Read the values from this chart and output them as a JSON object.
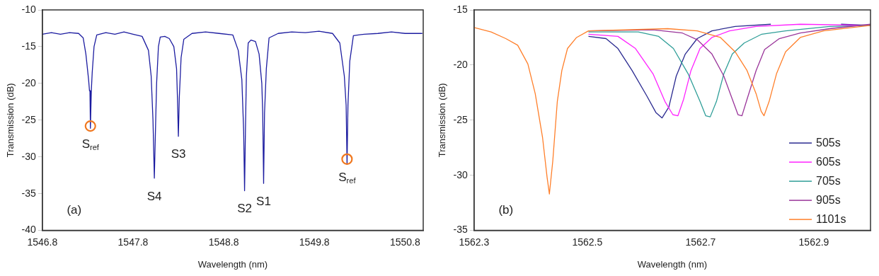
{
  "chart_data": [
    {
      "type": "line",
      "xlabel": "Wavelength (nm)",
      "ylabel": "Transmission (dB)",
      "xlim": [
        1546.8,
        1551.0
      ],
      "xticks": [
        1546.8,
        1547.8,
        1548.8,
        1549.8,
        1550.8
      ],
      "ylim": [
        -40,
        -10
      ],
      "yticks": [
        -40,
        -35,
        -30,
        -25,
        -20,
        -15,
        -10
      ],
      "grid": false,
      "legend": false,
      "series": [
        {
          "type": "line",
          "color": "#1c1ca0",
          "x": [
            1546.8,
            1546.9,
            1547.0,
            1547.1,
            1547.2,
            1547.25,
            1547.28,
            1547.31,
            1547.32,
            1547.325,
            1547.33,
            1547.34,
            1547.35,
            1547.37,
            1547.4,
            1547.5,
            1547.6,
            1547.7,
            1547.8,
            1547.9,
            1547.97,
            1548.0,
            1548.02,
            1548.035,
            1548.05,
            1548.06,
            1548.08,
            1548.1,
            1548.15,
            1548.2,
            1548.25,
            1548.28,
            1548.29,
            1548.3,
            1548.31,
            1548.33,
            1548.36,
            1548.45,
            1548.6,
            1548.75,
            1548.9,
            1548.96,
            1549.0,
            1549.02,
            1549.03,
            1549.04,
            1549.05,
            1549.07,
            1549.1,
            1549.15,
            1549.19,
            1549.22,
            1549.23,
            1549.24,
            1549.25,
            1549.27,
            1549.3,
            1549.4,
            1549.55,
            1549.7,
            1549.85,
            1550.0,
            1550.08,
            1550.13,
            1550.15,
            1550.16,
            1550.17,
            1550.19,
            1550.23,
            1550.35,
            1550.5,
            1550.65,
            1550.8,
            1550.99
          ],
          "values": [
            -13.3,
            -13.1,
            -13.3,
            -13.1,
            -13.2,
            -13.8,
            -16.0,
            -19.5,
            -21.0,
            -21.0,
            -26.1,
            -21.0,
            -18.5,
            -15.0,
            -13.4,
            -13.1,
            -13.3,
            -13.0,
            -13.3,
            -13.6,
            -15.5,
            -19.0,
            -25.0,
            -32.9,
            -25.0,
            -20.0,
            -15.0,
            -13.7,
            -13.6,
            -13.9,
            -15.0,
            -18.0,
            -22.0,
            -27.2,
            -22.0,
            -16.5,
            -14.0,
            -13.2,
            -13.0,
            -13.2,
            -13.4,
            -15.5,
            -19.5,
            -26.5,
            -34.6,
            -26.0,
            -19.0,
            -14.5,
            -14.1,
            -14.3,
            -16.0,
            -20.0,
            -24.0,
            -33.6,
            -24.0,
            -18.0,
            -13.8,
            -13.2,
            -13.0,
            -13.1,
            -12.9,
            -13.2,
            -14.5,
            -19.0,
            -23.0,
            -31.0,
            -23.0,
            -17.0,
            -13.5,
            -13.3,
            -13.2,
            -13.0,
            -13.2,
            -13.2
          ]
        },
        {
          "type": "scatter",
          "marker": "circle",
          "color": "#f07820",
          "x": [
            1547.33,
            1550.16
          ],
          "values": [
            -25.8,
            -30.3
          ]
        }
      ],
      "annotations": [
        {
          "text": "S$_{ref}$",
          "x": 1547.33,
          "y": -25.8
        },
        {
          "text": "S4",
          "x": 1548.035,
          "y": -32.9
        },
        {
          "text": "S3",
          "x": 1548.3,
          "y": -27.2
        },
        {
          "text": "S2",
          "x": 1549.03,
          "y": -34.6
        },
        {
          "text": "S1",
          "x": 1549.24,
          "y": -33.6
        },
        {
          "text": "S$_{ref}$",
          "x": 1550.16,
          "y": -30.3
        },
        "(a)"
      ]
    },
    {
      "type": "line",
      "xlabel": "Wavelength (nm)",
      "ylabel": "Transmission (dB)",
      "xlim": [
        1562.3,
        1563.0
      ],
      "xticks": [
        1562.3,
        1562.5,
        1562.7,
        1562.9
      ],
      "ylim": [
        -35,
        -15
      ],
      "yticks": [
        -35,
        -30,
        -25,
        -20,
        -15
      ],
      "grid": false,
      "legend": "bottom right",
      "series": [
        {
          "name": "505s",
          "color": "#2a2a90",
          "x": [
            1562.502,
            1562.533,
            1562.554,
            1562.579,
            1562.605,
            1562.621,
            1562.632,
            1562.644,
            1562.657,
            1562.673,
            1562.694,
            1562.72,
            1562.761,
            1562.824,
            1562.891,
            1562.948,
            1563.0
          ],
          "values": [
            -17.4,
            -17.6,
            -18.5,
            -20.5,
            -22.8,
            -24.3,
            -24.8,
            -23.8,
            -21.0,
            -19.0,
            -17.6,
            -16.9,
            -16.5,
            -16.3,
            null,
            -16.3,
            -16.4
          ]
        },
        {
          "name": "605s",
          "color": "#ff22ff",
          "x": [
            1562.502,
            1562.554,
            1562.585,
            1562.616,
            1562.637,
            1562.651,
            1562.66,
            1562.67,
            1562.683,
            1562.699,
            1562.72,
            1562.751,
            1562.798,
            1562.876,
            1563.0
          ],
          "values": [
            -17.2,
            -17.4,
            -18.5,
            -20.8,
            -23.3,
            -24.5,
            -24.6,
            -23.1,
            -20.5,
            -18.5,
            -17.5,
            -16.9,
            -16.5,
            -16.3,
            -16.4
          ]
        },
        {
          "name": "705s",
          "color": "#2f9e98",
          "x": [
            1562.502,
            1562.59,
            1562.626,
            1562.652,
            1562.678,
            1562.699,
            1562.709,
            1562.717,
            1562.728,
            1562.741,
            1562.756,
            1562.777,
            1562.808,
            1562.85,
            1562.928,
            1563.0
          ],
          "values": [
            -17.0,
            -17.0,
            -17.4,
            -18.5,
            -20.8,
            -23.3,
            -24.6,
            -24.7,
            -23.3,
            -20.8,
            -19.0,
            -18.0,
            -17.2,
            -16.9,
            -16.5,
            -16.4
          ]
        },
        {
          "name": "905s",
          "color": "#9a359a",
          "x": [
            1562.502,
            1562.616,
            1562.668,
            1562.694,
            1562.72,
            1562.741,
            1562.756,
            1562.766,
            1562.773,
            1562.782,
            1562.798,
            1562.813,
            1562.839,
            1562.876,
            1562.928,
            1563.0
          ],
          "values": [
            -16.9,
            -16.8,
            -17.1,
            -17.7,
            -19.0,
            -21.0,
            -23.1,
            -24.5,
            -24.6,
            -23.1,
            -20.5,
            -18.6,
            -17.6,
            -17.1,
            -16.7,
            -16.3
          ]
        },
        {
          "name": "1101s",
          "color": "#ff7f2a",
          "x": [
            1562.3,
            1562.33,
            1562.356,
            1562.377,
            1562.395,
            1562.408,
            1562.421,
            1562.429,
            1562.433,
            1562.439,
            1562.447,
            1562.455,
            1562.465,
            1562.481,
            1562.502,
            1562.642,
            1562.694,
            1562.735,
            1562.761,
            1562.782,
            1562.798,
            1562.807,
            1562.812,
            1562.821,
            1562.834,
            1562.85,
            1562.876,
            1562.917,
            1563.0
          ],
          "values": [
            -16.6,
            -17.0,
            -17.6,
            -18.2,
            -19.9,
            -22.6,
            -26.6,
            -30.2,
            -31.7,
            -28.7,
            -23.3,
            -20.5,
            -18.5,
            -17.5,
            -16.9,
            -16.7,
            -16.9,
            -17.5,
            -18.8,
            -20.5,
            -22.6,
            -24.2,
            -24.6,
            -23.3,
            -20.8,
            -18.8,
            -17.5,
            -16.9,
            -16.4
          ]
        }
      ],
      "annotations": [
        "(b)"
      ]
    }
  ]
}
